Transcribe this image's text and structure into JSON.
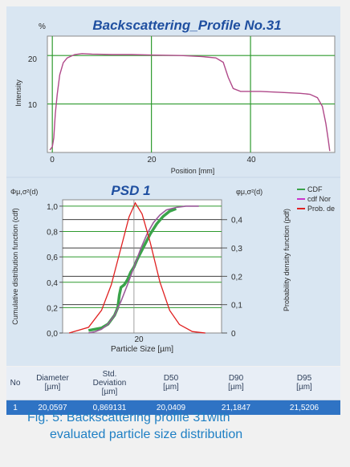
{
  "top_chart": {
    "title": "Backscattering_Profile No.31",
    "unit": "%",
    "ylabel": "Intensity",
    "xlabel": "Position [mm]",
    "y_ticks": [
      "20",
      "10"
    ],
    "x_ticks": [
      "0",
      "20",
      "40"
    ]
  },
  "bottom_chart": {
    "title": "PSD 1",
    "left_header": "Φμ,σ²(d)",
    "right_header": "φμ,σ²(d)",
    "ylabel_left": "Cumulative distribution function (cdf)",
    "ylabel_right": "Probability density function (pdf)",
    "xlabel": "Particle Size [µm]",
    "left_ticks": [
      "1,0",
      "0,8",
      "0,6",
      "0,4",
      "0,2",
      "0,0"
    ],
    "right_ticks": [
      "0,4",
      "0,3",
      "0,2",
      "0,1",
      "0"
    ],
    "x_ticks": [
      "20"
    ],
    "legend": [
      {
        "label": "CDF",
        "color": "#3aa34a"
      },
      {
        "label": "cdf Nor",
        "color": "#cc33cc"
      },
      {
        "label": "Prob. de",
        "color": "#e02020"
      }
    ]
  },
  "chart_data": [
    {
      "type": "line",
      "title": "Backscattering_Profile No.31",
      "xlabel": "Position [mm]",
      "ylabel": "Intensity",
      "xlim": [
        -1,
        57
      ],
      "ylim": [
        0,
        24
      ],
      "series": [
        {
          "points": [
            [
              -0.5,
              0.5
            ],
            [
              0,
              1.2
            ],
            [
              0.3,
              3
            ],
            [
              0.6,
              8
            ],
            [
              1,
              12
            ],
            [
              1.5,
              16
            ],
            [
              2.2,
              18.5
            ],
            [
              3,
              19.5
            ],
            [
              4.5,
              20.2
            ],
            [
              6,
              20.4
            ],
            [
              8,
              20.3
            ],
            [
              12,
              20.2
            ],
            [
              16,
              20.2
            ],
            [
              20,
              20.1
            ],
            [
              26,
              20.0
            ],
            [
              30,
              19.8
            ],
            [
              33,
              19.5
            ],
            [
              34.5,
              18.6
            ],
            [
              35.5,
              15.5
            ],
            [
              36.5,
              13.2
            ],
            [
              38,
              12.6
            ],
            [
              42,
              12.6
            ],
            [
              46,
              12.4
            ],
            [
              50,
              12.2
            ],
            [
              52,
              12.0
            ],
            [
              53.5,
              11.3
            ],
            [
              54.5,
              9.5
            ],
            [
              55.2,
              6
            ],
            [
              55.7,
              2.5
            ],
            [
              56,
              0.3
            ]
          ]
        }
      ],
      "x_ticks": [
        0,
        20,
        40
      ],
      "y_ticks": [
        10,
        20
      ],
      "grid": true
    },
    {
      "type": "line",
      "title": "PSD 1",
      "xlabel": "Particle Size [µm]",
      "ylabel": "Cumulative distribution function (cdf)",
      "ylabel_right": "Probability density function (pdf)",
      "xlim": [
        17.8,
        22.7
      ],
      "ylim": [
        0,
        1.05
      ],
      "ylim_right": [
        0,
        0.47
      ],
      "series": [
        {
          "name": "CDF",
          "axis": "left",
          "points": [
            [
              18.6,
              0.02
            ],
            [
              19.0,
              0.04
            ],
            [
              19.2,
              0.07
            ],
            [
              19.4,
              0.14
            ],
            [
              19.5,
              0.2
            ],
            [
              19.55,
              0.3
            ],
            [
              19.6,
              0.36
            ],
            [
              19.7,
              0.38
            ],
            [
              19.8,
              0.42
            ],
            [
              19.9,
              0.48
            ],
            [
              20.0,
              0.52
            ],
            [
              20.1,
              0.58
            ],
            [
              20.3,
              0.68
            ],
            [
              20.5,
              0.78
            ],
            [
              20.7,
              0.86
            ],
            [
              20.9,
              0.92
            ],
            [
              21.1,
              0.96
            ],
            [
              21.3,
              0.98
            ]
          ]
        },
        {
          "name": "cdf Nor",
          "axis": "left",
          "points": [
            [
              18.6,
              0.0
            ],
            [
              18.8,
              0.01
            ],
            [
              19.0,
              0.03
            ],
            [
              19.2,
              0.07
            ],
            [
              19.4,
              0.14
            ],
            [
              19.6,
              0.25
            ],
            [
              19.8,
              0.38
            ],
            [
              20.0,
              0.52
            ],
            [
              20.2,
              0.66
            ],
            [
              20.4,
              0.78
            ],
            [
              20.6,
              0.87
            ],
            [
              20.8,
              0.93
            ],
            [
              21.0,
              0.97
            ],
            [
              21.3,
              0.99
            ],
            [
              21.6,
              1.0
            ],
            [
              22.0,
              1.0
            ]
          ]
        },
        {
          "name": "Prob. de",
          "axis": "right",
          "points": [
            [
              18.0,
              0.0
            ],
            [
              18.6,
              0.02
            ],
            [
              19.0,
              0.08
            ],
            [
              19.3,
              0.17
            ],
            [
              19.6,
              0.3
            ],
            [
              19.85,
              0.41
            ],
            [
              20.04,
              0.459
            ],
            [
              20.25,
              0.42
            ],
            [
              20.5,
              0.32
            ],
            [
              20.8,
              0.18
            ],
            [
              21.1,
              0.08
            ],
            [
              21.4,
              0.03
            ],
            [
              21.8,
              0.005
            ],
            [
              22.2,
              0.0
            ]
          ]
        }
      ],
      "x_ticks": [
        20
      ],
      "grid": true
    }
  ],
  "table": {
    "headers": [
      {
        "line1": "No",
        "line2": "",
        "line3": ""
      },
      {
        "line1": "Diameter",
        "line2": "[µm]",
        "line3": ""
      },
      {
        "line1": "Std.",
        "line2": "Deviation",
        "line3": "[µm]"
      },
      {
        "line1": "D50",
        "line2": "[µm]",
        "line3": ""
      },
      {
        "line1": "D90",
        "line2": "[µm]",
        "line3": ""
      },
      {
        "line1": "D95",
        "line2": "[µm]",
        "line3": ""
      }
    ],
    "rows": [
      [
        "1",
        "20,0597",
        "0,869131",
        "20,0409",
        "21,1847",
        "21,5206"
      ]
    ]
  },
  "caption": {
    "line1": "Fig. 5: Backscattering profile  31with",
    "line2": "evaluated particle size distribution"
  }
}
